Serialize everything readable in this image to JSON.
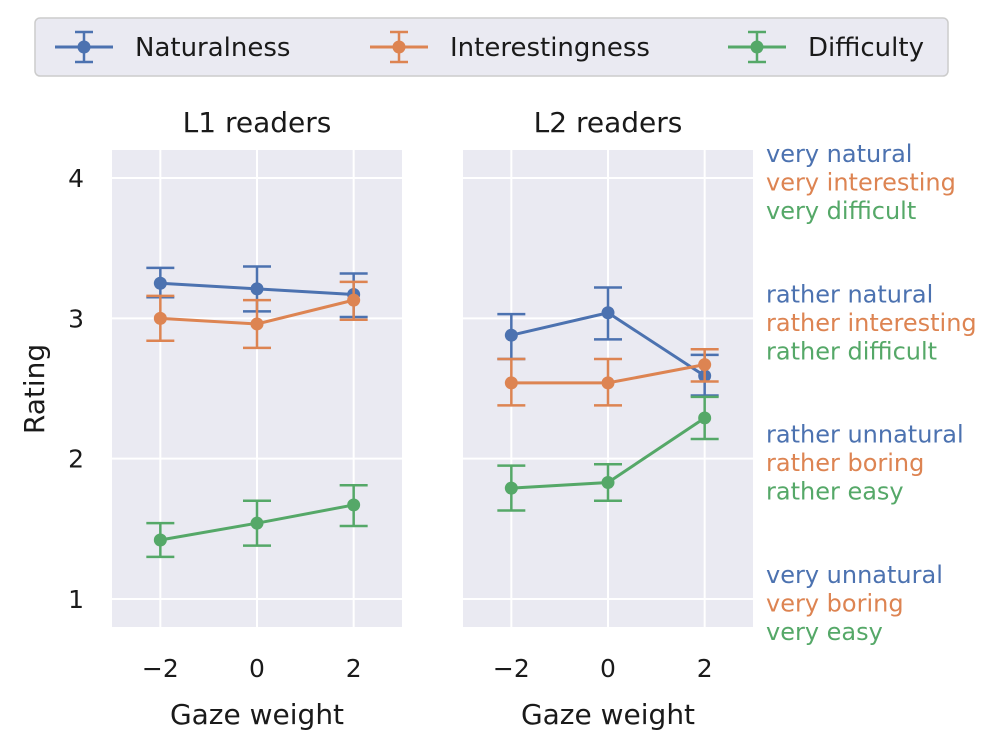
{
  "chart_data": {
    "type": "line",
    "colors": {
      "naturalness": "#4c72b0",
      "interestingness": "#dd8452",
      "difficulty": "#55a868",
      "panel_bg": "#eaeaf2",
      "grid": "#ffffff"
    },
    "legend": {
      "position": "top",
      "entries": [
        {
          "key": "naturalness",
          "label": "Naturalness"
        },
        {
          "key": "interestingness",
          "label": "Interestingness"
        },
        {
          "key": "difficulty",
          "label": "Difficulty"
        }
      ]
    },
    "ylabel": "Rating",
    "ylim": [
      0.8,
      4.2
    ],
    "yticks": [
      1,
      2,
      3,
      4
    ],
    "xlim": [
      -3,
      3
    ],
    "xticks": [
      -2,
      0,
      2
    ],
    "xtick_labels": [
      "−2",
      "0",
      "2"
    ],
    "panels": [
      {
        "title": "L1 readers",
        "xlabel": "Gaze weight",
        "series": [
          {
            "key": "naturalness",
            "name": "Naturalness",
            "x": [
              -2,
              0,
              2
            ],
            "y": [
              3.25,
              3.21,
              3.17
            ],
            "err_low": [
              3.15,
              3.05,
              3.01
            ],
            "err_high": [
              3.36,
              3.37,
              3.32
            ]
          },
          {
            "key": "interestingness",
            "name": "Interestingness",
            "x": [
              -2,
              0,
              2
            ],
            "y": [
              3.0,
              2.96,
              3.13
            ],
            "err_low": [
              2.84,
              2.79,
              2.99
            ],
            "err_high": [
              3.16,
              3.13,
              3.26
            ]
          },
          {
            "key": "difficulty",
            "name": "Difficulty",
            "x": [
              -2,
              0,
              2
            ],
            "y": [
              1.42,
              1.54,
              1.67
            ],
            "err_low": [
              1.3,
              1.38,
              1.52
            ],
            "err_high": [
              1.54,
              1.7,
              1.81
            ]
          }
        ]
      },
      {
        "title": "L2 readers",
        "xlabel": "Gaze weight",
        "series": [
          {
            "key": "naturalness",
            "name": "Naturalness",
            "x": [
              -2,
              0,
              2
            ],
            "y": [
              2.88,
              3.04,
              2.59
            ],
            "err_low": [
              2.71,
              2.85,
              2.45
            ],
            "err_high": [
              3.03,
              3.22,
              2.74
            ]
          },
          {
            "key": "interestingness",
            "name": "Interestingness",
            "x": [
              -2,
              0,
              2
            ],
            "y": [
              2.54,
              2.54,
              2.67
            ],
            "err_low": [
              2.38,
              2.38,
              2.55
            ],
            "err_high": [
              2.71,
              2.71,
              2.78
            ]
          },
          {
            "key": "difficulty",
            "name": "Difficulty",
            "x": [
              -2,
              0,
              2
            ],
            "y": [
              1.79,
              1.83,
              2.29
            ],
            "err_low": [
              1.63,
              1.7,
              2.14
            ],
            "err_high": [
              1.95,
              1.96,
              2.44
            ]
          }
        ]
      }
    ],
    "annotations": [
      {
        "level": 4,
        "lines": [
          {
            "key": "naturalness",
            "text": "very natural"
          },
          {
            "key": "interestingness",
            "text": "very interesting"
          },
          {
            "key": "difficulty",
            "text": "very difficult"
          }
        ]
      },
      {
        "level": 3,
        "lines": [
          {
            "key": "naturalness",
            "text": "rather natural"
          },
          {
            "key": "interestingness",
            "text": "rather interesting"
          },
          {
            "key": "difficulty",
            "text": "rather difficult"
          }
        ]
      },
      {
        "level": 2,
        "lines": [
          {
            "key": "naturalness",
            "text": "rather unnatural"
          },
          {
            "key": "interestingness",
            "text": "rather boring"
          },
          {
            "key": "difficulty",
            "text": "rather easy"
          }
        ]
      },
      {
        "level": 1,
        "lines": [
          {
            "key": "naturalness",
            "text": "very unnatural"
          },
          {
            "key": "interestingness",
            "text": "very boring"
          },
          {
            "key": "difficulty",
            "text": "very easy"
          }
        ]
      }
    ]
  }
}
